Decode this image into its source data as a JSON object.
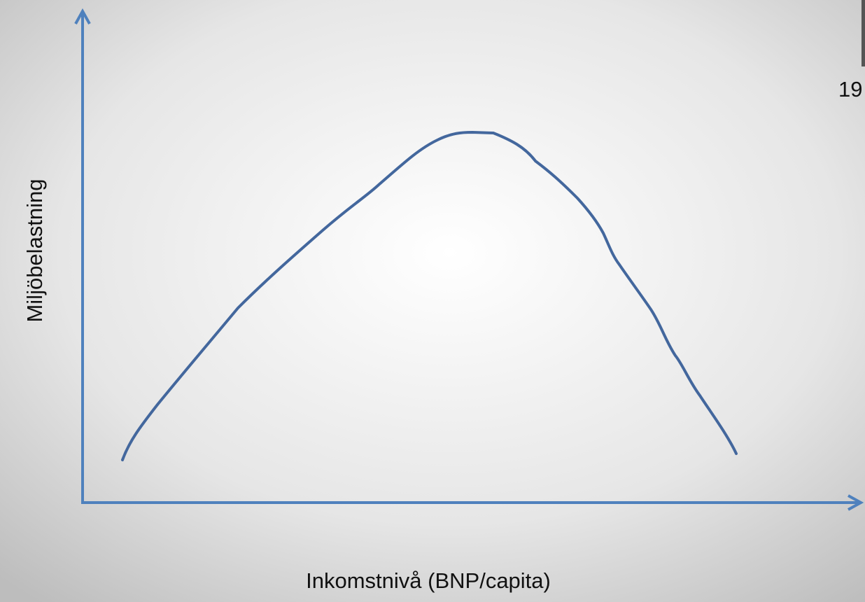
{
  "y_axis_label": "Miljöbelastning",
  "x_axis_label": "Inkomstnivå (BNP/capita)",
  "side_text": "19"
}
